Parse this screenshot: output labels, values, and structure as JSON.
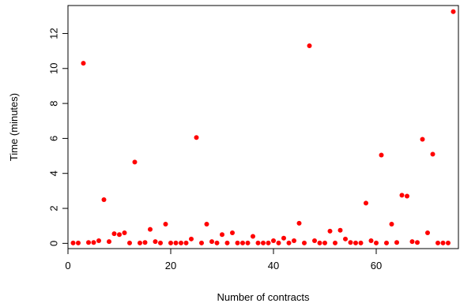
{
  "chart_data": {
    "type": "scatter",
    "xlabel": "Number of contracts",
    "ylabel": "Time (minutes)",
    "xlim": [
      0,
      76
    ],
    "ylim": [
      -0.3,
      13.6
    ],
    "xticks": [
      0,
      20,
      40,
      60
    ],
    "yticks": [
      0,
      2,
      4,
      6,
      8,
      10,
      12
    ],
    "grid": false,
    "point_color": "#ff0000",
    "points": [
      {
        "x": 1,
        "y": 0.02
      },
      {
        "x": 2,
        "y": 0.02
      },
      {
        "x": 3,
        "y": 10.3
      },
      {
        "x": 4,
        "y": 0.05
      },
      {
        "x": 5,
        "y": 0.05
      },
      {
        "x": 6,
        "y": 0.15
      },
      {
        "x": 7,
        "y": 2.5
      },
      {
        "x": 8,
        "y": 0.1
      },
      {
        "x": 9,
        "y": 0.55
      },
      {
        "x": 10,
        "y": 0.5
      },
      {
        "x": 11,
        "y": 0.6
      },
      {
        "x": 12,
        "y": 0.02
      },
      {
        "x": 13,
        "y": 4.65
      },
      {
        "x": 14,
        "y": 0.02
      },
      {
        "x": 15,
        "y": 0.05
      },
      {
        "x": 16,
        "y": 0.8
      },
      {
        "x": 17,
        "y": 0.1
      },
      {
        "x": 18,
        "y": 0.02
      },
      {
        "x": 19,
        "y": 1.1
      },
      {
        "x": 20,
        "y": 0.02
      },
      {
        "x": 21,
        "y": 0.02
      },
      {
        "x": 22,
        "y": 0.02
      },
      {
        "x": 23,
        "y": 0.02
      },
      {
        "x": 24,
        "y": 0.25
      },
      {
        "x": 25,
        "y": 6.05
      },
      {
        "x": 26,
        "y": 0.02
      },
      {
        "x": 27,
        "y": 1.1
      },
      {
        "x": 28,
        "y": 0.1
      },
      {
        "x": 29,
        "y": 0.02
      },
      {
        "x": 30,
        "y": 0.5
      },
      {
        "x": 31,
        "y": 0.02
      },
      {
        "x": 32,
        "y": 0.6
      },
      {
        "x": 33,
        "y": 0.02
      },
      {
        "x": 34,
        "y": 0.02
      },
      {
        "x": 35,
        "y": 0.02
      },
      {
        "x": 36,
        "y": 0.4
      },
      {
        "x": 37,
        "y": 0.02
      },
      {
        "x": 38,
        "y": 0.02
      },
      {
        "x": 39,
        "y": 0.02
      },
      {
        "x": 40,
        "y": 0.15
      },
      {
        "x": 41,
        "y": 0.02
      },
      {
        "x": 42,
        "y": 0.3
      },
      {
        "x": 43,
        "y": 0.02
      },
      {
        "x": 44,
        "y": 0.15
      },
      {
        "x": 45,
        "y": 1.15
      },
      {
        "x": 46,
        "y": 0.02
      },
      {
        "x": 47,
        "y": 11.3
      },
      {
        "x": 48,
        "y": 0.15
      },
      {
        "x": 49,
        "y": 0.02
      },
      {
        "x": 50,
        "y": 0.02
      },
      {
        "x": 51,
        "y": 0.7
      },
      {
        "x": 52,
        "y": 0.02
      },
      {
        "x": 53,
        "y": 0.75
      },
      {
        "x": 54,
        "y": 0.25
      },
      {
        "x": 55,
        "y": 0.05
      },
      {
        "x": 56,
        "y": 0.02
      },
      {
        "x": 57,
        "y": 0.02
      },
      {
        "x": 58,
        "y": 2.3
      },
      {
        "x": 59,
        "y": 0.15
      },
      {
        "x": 60,
        "y": 0.02
      },
      {
        "x": 61,
        "y": 5.05
      },
      {
        "x": 62,
        "y": 0.02
      },
      {
        "x": 63,
        "y": 1.1
      },
      {
        "x": 64,
        "y": 0.05
      },
      {
        "x": 65,
        "y": 2.75
      },
      {
        "x": 66,
        "y": 2.7
      },
      {
        "x": 67,
        "y": 0.1
      },
      {
        "x": 68,
        "y": 0.05
      },
      {
        "x": 69,
        "y": 5.95
      },
      {
        "x": 70,
        "y": 0.6
      },
      {
        "x": 71,
        "y": 5.1
      },
      {
        "x": 72,
        "y": 0.02
      },
      {
        "x": 73,
        "y": 0.02
      },
      {
        "x": 74,
        "y": 0.02
      },
      {
        "x": 75,
        "y": 13.25
      }
    ]
  }
}
